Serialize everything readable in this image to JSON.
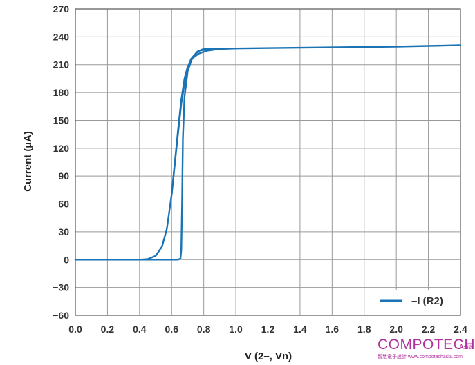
{
  "chart_data": {
    "type": "line",
    "xlabel": "V (2–, Vn)",
    "ylabel": "Current (µA)",
    "xlim": [
      0.0,
      2.4
    ],
    "ylim": [
      -60,
      270
    ],
    "x_ticks": [
      "0.0",
      "0.2",
      "0.4",
      "0.6",
      "0.8",
      "1.0",
      "1.2",
      "1.4",
      "1.6",
      "1.8",
      "2.0",
      "2.2",
      "2.4"
    ],
    "y_ticks": [
      "270",
      "240",
      "210",
      "180",
      "150",
      "120",
      "90",
      "60",
      "30",
      "0",
      "−30",
      "−60"
    ],
    "grid": true,
    "legend_position": "bottom-right",
    "series": [
      {
        "name": "–I (R2)",
        "color": "#1a73b5",
        "branches": [
          [
            [
              0.0,
              0
            ],
            [
              0.4,
              0
            ],
            [
              0.45,
              0.5
            ],
            [
              0.5,
              4
            ],
            [
              0.54,
              14
            ],
            [
              0.57,
              33
            ],
            [
              0.6,
              70
            ],
            [
              0.62,
              105
            ],
            [
              0.64,
              140
            ],
            [
              0.66,
              172
            ],
            [
              0.68,
              195
            ],
            [
              0.7,
              208
            ],
            [
              0.73,
              217
            ],
            [
              0.77,
              222
            ],
            [
              0.82,
              225
            ],
            [
              0.9,
              227
            ],
            [
              1.0,
              227.5
            ],
            [
              1.5,
              228.5
            ],
            [
              2.0,
              229.5
            ],
            [
              2.4,
              231
            ]
          ],
          [
            [
              0.0,
              0
            ],
            [
              0.64,
              0
            ],
            [
              0.655,
              1
            ],
            [
              0.66,
              10
            ],
            [
              0.665,
              60
            ],
            [
              0.67,
              130
            ],
            [
              0.68,
              175
            ],
            [
              0.7,
              203
            ],
            [
              0.73,
              218
            ],
            [
              0.77,
              225
            ],
            [
              0.82,
              226.5
            ],
            [
              0.9,
              227
            ],
            [
              1.0,
              227.5
            ]
          ],
          [
            [
              0.6,
              70
            ],
            [
              0.63,
              120
            ],
            [
              0.66,
              168
            ],
            [
              0.69,
              200
            ],
            [
              0.72,
              216
            ],
            [
              0.76,
              224
            ],
            [
              0.8,
              227
            ],
            [
              0.86,
              227.5
            ],
            [
              0.95,
              227.5
            ]
          ]
        ]
      }
    ]
  },
  "legend": {
    "label": "–I (R2)"
  },
  "watermark": {
    "brand": "COMPOTECH",
    "suffix": "Asia",
    "subtitle": "智慧電子設計 www.compotechasia.com"
  }
}
